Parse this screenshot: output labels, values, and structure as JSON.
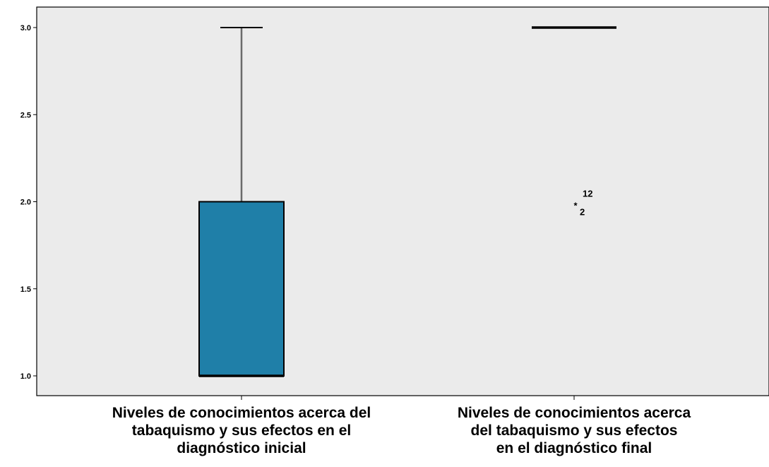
{
  "chart_data": {
    "type": "boxplot",
    "title": "",
    "xlabel": "",
    "ylabel": "",
    "ylim": [
      1.0,
      3.0
    ],
    "y_ticks": [
      "1.0",
      "1.5",
      "2.0",
      "2.5",
      "3.0"
    ],
    "grid": false,
    "colors": {
      "plot_background": "#ebebeb",
      "box_fill": "#1f7fa8",
      "whisker": "#6a6a6a",
      "median": "#000000"
    },
    "categories": [
      {
        "label_lines": [
          "Niveles de conocimientos acerca del",
          "tabaquismo y sus efectos en el",
          "diagnóstico inicial"
        ],
        "min": 1.0,
        "q1": 1.0,
        "median": 1.0,
        "q3": 2.0,
        "max": 3.0,
        "outliers": []
      },
      {
        "label_lines": [
          "Niveles de conocimientos acerca",
          "del tabaquismo y sus efectos",
          "en el diagnóstico final"
        ],
        "min": 3.0,
        "q1": 3.0,
        "median": 3.0,
        "q3": 3.0,
        "max": 3.0,
        "outliers": [
          {
            "value": 2.0,
            "marker": "*",
            "labels": [
              "12",
              "2"
            ]
          }
        ]
      }
    ]
  }
}
